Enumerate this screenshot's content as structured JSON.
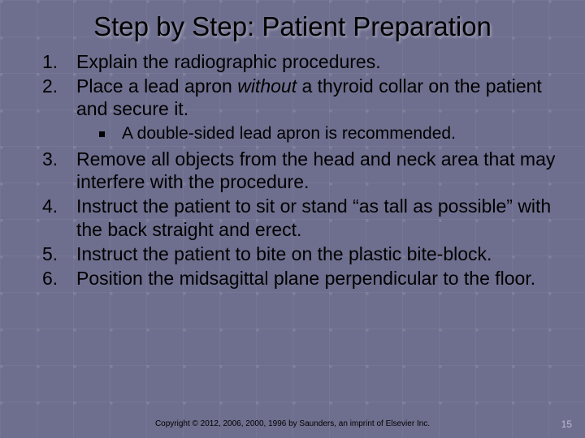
{
  "title": "Step by Step: Patient Preparation",
  "items": {
    "1": "Explain the radiographic procedures.",
    "2_pre": "Place a lead apron ",
    "2_it": "without",
    "2_post": " a thyroid collar on the patient and secure it.",
    "2_sub": "A double-sided lead apron is recommended.",
    "3": "Remove all objects from the head and neck area that may interfere with the procedure.",
    "4": "Instruct the patient to sit or stand “as tall as possible” with the back straight and erect.",
    "5": "Instruct the patient to bite on the plastic bite-block.",
    "6": "Position the midsagittal plane perpendicular to the floor."
  },
  "copyright": "Copyright © 2012, 2006, 2000, 1996 by Saunders, an imprint of Elsevier Inc.",
  "pagenum": "15",
  "colors": {
    "background": "#6e6e8e",
    "text": "#000000",
    "pagenum": "#bdbdd2"
  },
  "fonts": {
    "title_size": 33,
    "body_size": 23,
    "sub_size": 21,
    "copyright_size": 10
  }
}
